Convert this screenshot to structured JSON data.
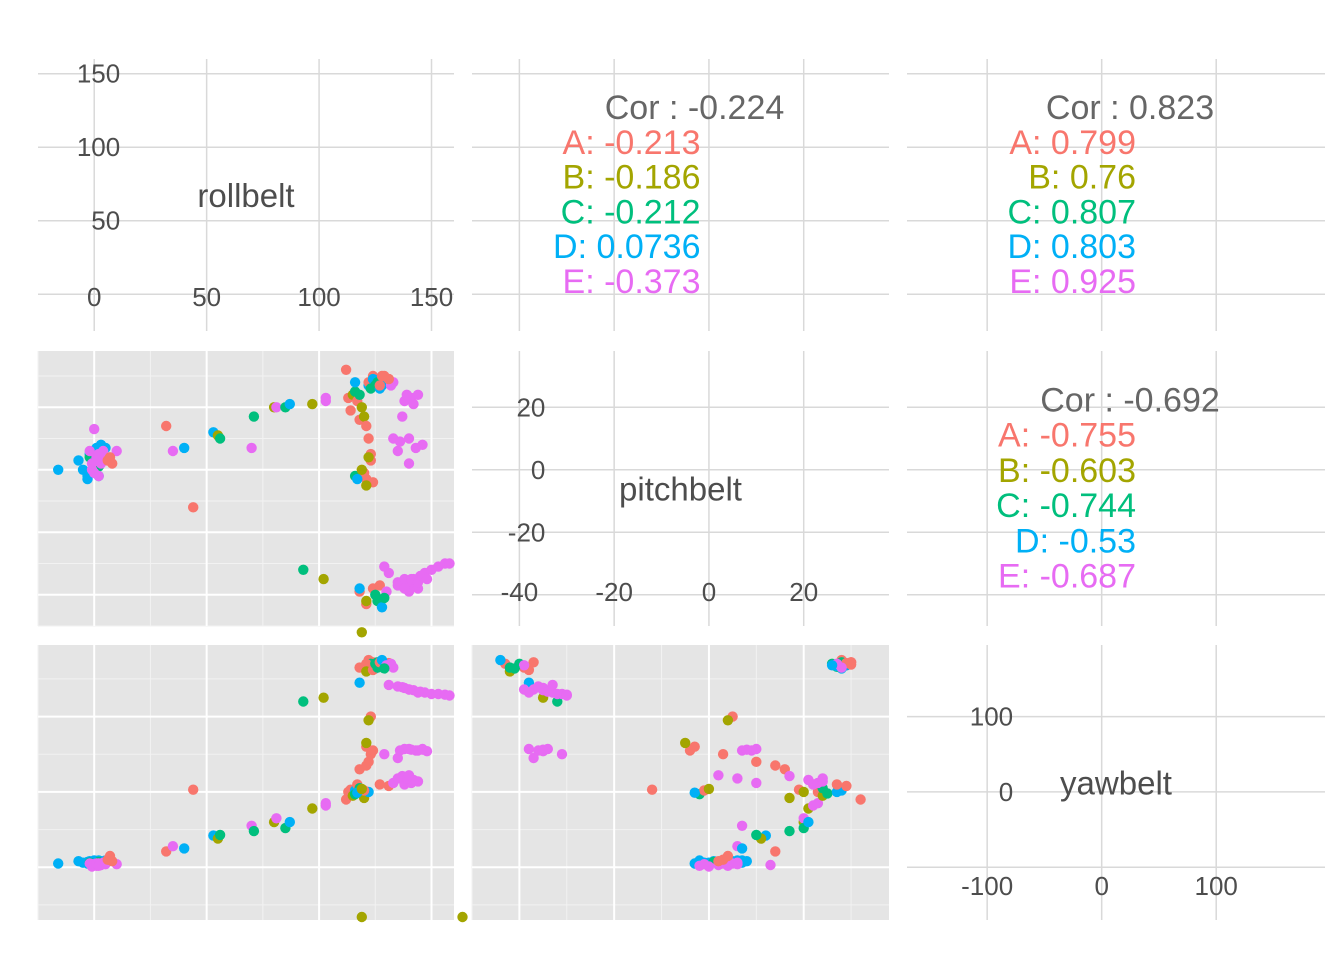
{
  "colors": {
    "A": "#F8766D",
    "B": "#A3A500",
    "C": "#00BF7D",
    "D": "#00B0F6",
    "E": "#E76BF3",
    "label": "#4d4d4d",
    "cor_title": "#666666",
    "panel_bg": "#e5e5e5",
    "grid_light": "#d9d9d9"
  },
  "chart_data": {
    "type": "scatter",
    "title": "",
    "variables": [
      "rollbelt",
      "pitchbelt",
      "yawbelt"
    ],
    "ranges": {
      "rollbelt": [
        -25,
        160
      ],
      "pitchbelt": [
        -50,
        38
      ],
      "yawbelt": [
        -170,
        195
      ]
    },
    "ticks": {
      "rollbelt": [
        0,
        50,
        100,
        150
      ],
      "pitchbelt": [
        -40,
        -20,
        0,
        20
      ],
      "yawbelt": [
        -100,
        0,
        100
      ]
    },
    "classes": [
      "A",
      "B",
      "C",
      "D",
      "E"
    ],
    "correlations": [
      {
        "pair": [
          "rollbelt",
          "pitchbelt"
        ],
        "overall": "Cor : -0.224",
        "groups": [
          {
            "cls": "A",
            "text": "A: -0.213"
          },
          {
            "cls": "B",
            "text": "B: -0.186"
          },
          {
            "cls": "C",
            "text": "C: -0.212"
          },
          {
            "cls": "D",
            "text": "D: 0.0736"
          },
          {
            "cls": "E",
            "text": "E: -0.373"
          }
        ]
      },
      {
        "pair": [
          "rollbelt",
          "yawbelt"
        ],
        "overall": "Cor : 0.823",
        "groups": [
          {
            "cls": "A",
            "text": "A: 0.799"
          },
          {
            "cls": "B",
            "text": "B: 0.76"
          },
          {
            "cls": "C",
            "text": "C: 0.807"
          },
          {
            "cls": "D",
            "text": "D: 0.803"
          },
          {
            "cls": "E",
            "text": "E: 0.925"
          }
        ]
      },
      {
        "pair": [
          "pitchbelt",
          "yawbelt"
        ],
        "overall": "Cor : -0.692",
        "groups": [
          {
            "cls": "A",
            "text": "A: -0.755"
          },
          {
            "cls": "B",
            "text": "B: -0.603"
          },
          {
            "cls": "C",
            "text": "C: -0.744"
          },
          {
            "cls": "D",
            "text": "D: -0.53"
          },
          {
            "cls": "E",
            "text": "E: -0.687"
          }
        ]
      }
    ],
    "points": [
      {
        "cls": "D",
        "roll": -16,
        "pitch": 0,
        "yaw": -95
      },
      {
        "cls": "D",
        "roll": -7,
        "pitch": 3,
        "yaw": -92
      },
      {
        "cls": "D",
        "roll": -5,
        "pitch": 0,
        "yaw": -94
      },
      {
        "cls": "D",
        "roll": -3,
        "pitch": -2,
        "yaw": -93
      },
      {
        "cls": "D",
        "roll": -2,
        "pitch": 5,
        "yaw": -92
      },
      {
        "cls": "D",
        "roll": 0,
        "pitch": 6,
        "yaw": -91
      },
      {
        "cls": "D",
        "roll": 1,
        "pitch": 7,
        "yaw": -94
      },
      {
        "cls": "D",
        "roll": 3,
        "pitch": 8,
        "yaw": -92
      },
      {
        "cls": "D",
        "roll": 2,
        "pitch": -2,
        "yaw": -91
      },
      {
        "cls": "D",
        "roll": -3,
        "pitch": -3,
        "yaw": -95
      },
      {
        "cls": "D",
        "roll": 0,
        "pitch": 1,
        "yaw": -92
      },
      {
        "cls": "D",
        "roll": 4,
        "pitch": 3,
        "yaw": -93
      },
      {
        "cls": "D",
        "roll": -1,
        "pitch": -1,
        "yaw": -94
      },
      {
        "cls": "D",
        "roll": 5,
        "pitch": 7,
        "yaw": -91
      },
      {
        "cls": "C",
        "roll": -2,
        "pitch": 4,
        "yaw": -94
      },
      {
        "cls": "C",
        "roll": 2,
        "pitch": 1,
        "yaw": -93
      },
      {
        "cls": "E",
        "roll": 0,
        "pitch": 13,
        "yaw": -97
      },
      {
        "cls": "E",
        "roll": -2,
        "pitch": 6,
        "yaw": -95
      },
      {
        "cls": "E",
        "roll": -1,
        "pitch": 2,
        "yaw": -96
      },
      {
        "cls": "E",
        "roll": 1,
        "pitch": 4,
        "yaw": -98
      },
      {
        "cls": "E",
        "roll": 2,
        "pitch": 5,
        "yaw": -95
      },
      {
        "cls": "E",
        "roll": 3,
        "pitch": 2,
        "yaw": -97
      },
      {
        "cls": "E",
        "roll": 4,
        "pitch": 6,
        "yaw": -94
      },
      {
        "cls": "E",
        "roll": -1,
        "pitch": 0,
        "yaw": -99
      },
      {
        "cls": "E",
        "roll": 0,
        "pitch": -1,
        "yaw": -96
      },
      {
        "cls": "E",
        "roll": 1,
        "pitch": 3,
        "yaw": -95
      },
      {
        "cls": "E",
        "roll": 2,
        "pitch": -2,
        "yaw": -98
      },
      {
        "cls": "E",
        "roll": 5,
        "pitch": 4,
        "yaw": -96
      },
      {
        "cls": "E",
        "roll": 10,
        "pitch": 6,
        "yaw": -96
      },
      {
        "cls": "A",
        "roll": 6,
        "pitch": 3,
        "yaw": -90
      },
      {
        "cls": "A",
        "roll": 7,
        "pitch": 4,
        "yaw": -85
      },
      {
        "cls": "A",
        "roll": 8,
        "pitch": 2,
        "yaw": -92
      },
      {
        "cls": "A",
        "roll": 32,
        "pitch": 14,
        "yaw": -79
      },
      {
        "cls": "E",
        "roll": 35,
        "pitch": 6,
        "yaw": -72
      },
      {
        "cls": "D",
        "roll": 40,
        "pitch": 7,
        "yaw": -75
      },
      {
        "cls": "A",
        "roll": 44,
        "pitch": -12,
        "yaw": 3
      },
      {
        "cls": "D",
        "roll": 53,
        "pitch": 12,
        "yaw": -58
      },
      {
        "cls": "B",
        "roll": 55,
        "pitch": 11,
        "yaw": -62
      },
      {
        "cls": "C",
        "roll": 56,
        "pitch": 10,
        "yaw": -57
      },
      {
        "cls": "E",
        "roll": 70,
        "pitch": 7,
        "yaw": -45
      },
      {
        "cls": "C",
        "roll": 71,
        "pitch": 17,
        "yaw": -52
      },
      {
        "cls": "B",
        "roll": 80,
        "pitch": 20,
        "yaw": -40
      },
      {
        "cls": "E",
        "roll": 81,
        "pitch": 20,
        "yaw": -35
      },
      {
        "cls": "C",
        "roll": 85,
        "pitch": 20,
        "yaw": -48
      },
      {
        "cls": "D",
        "roll": 87,
        "pitch": 21,
        "yaw": -40
      },
      {
        "cls": "B",
        "roll": 97,
        "pitch": 21,
        "yaw": -22
      },
      {
        "cls": "E",
        "roll": 103,
        "pitch": 22,
        "yaw": -18
      },
      {
        "cls": "E",
        "roll": 103,
        "pitch": 23,
        "yaw": -15
      },
      {
        "cls": "C",
        "roll": 93,
        "pitch": -32,
        "yaw": 120
      },
      {
        "cls": "B",
        "roll": 102,
        "pitch": -35,
        "yaw": 125
      },
      {
        "cls": "A",
        "roll": 112,
        "pitch": 32,
        "yaw": -10
      },
      {
        "cls": "A",
        "roll": 113,
        "pitch": 23,
        "yaw": 0
      },
      {
        "cls": "A",
        "roll": 114,
        "pitch": 19,
        "yaw": 3
      },
      {
        "cls": "B",
        "roll": 115,
        "pitch": 24,
        "yaw": -5
      },
      {
        "cls": "C",
        "roll": 116,
        "pitch": 25,
        "yaw": -2
      },
      {
        "cls": "D",
        "roll": 116,
        "pitch": 28,
        "yaw": 2
      },
      {
        "cls": "A",
        "roll": 117,
        "pitch": 22,
        "yaw": 10
      },
      {
        "cls": "A",
        "roll": 118,
        "pitch": 16,
        "yaw": 30
      },
      {
        "cls": "C",
        "roll": 118,
        "pitch": 24,
        "yaw": 5
      },
      {
        "cls": "B",
        "roll": 119,
        "pitch": 20,
        "yaw": 0
      },
      {
        "cls": "B",
        "roll": 120,
        "pitch": 17,
        "yaw": -8
      },
      {
        "cls": "D",
        "roll": 122,
        "pitch": 27,
        "yaw": 0
      },
      {
        "cls": "A",
        "roll": 121,
        "pitch": 14,
        "yaw": 35
      },
      {
        "cls": "A",
        "roll": 122,
        "pitch": 10,
        "yaw": 40
      },
      {
        "cls": "A",
        "roll": 123,
        "pitch": 3,
        "yaw": 50
      },
      {
        "cls": "A",
        "roll": 121,
        "pitch": -3,
        "yaw": 60
      },
      {
        "cls": "A",
        "roll": 124,
        "pitch": -4,
        "yaw": 55
      },
      {
        "cls": "B",
        "roll": 121,
        "pitch": -5,
        "yaw": 65
      },
      {
        "cls": "A",
        "roll": 123,
        "pitch": 5,
        "yaw": 100
      },
      {
        "cls": "B",
        "roll": 122,
        "pitch": 4,
        "yaw": 95
      },
      {
        "cls": "A",
        "roll": 122,
        "pitch": 28,
        "yaw": 175
      },
      {
        "cls": "A",
        "roll": 124,
        "pitch": 30,
        "yaw": 172
      },
      {
        "cls": "A",
        "roll": 126,
        "pitch": 29,
        "yaw": 168
      },
      {
        "cls": "C",
        "roll": 123,
        "pitch": 26,
        "yaw": 170
      },
      {
        "cls": "D",
        "roll": 124,
        "pitch": 29,
        "yaw": 168
      },
      {
        "cls": "D",
        "roll": 125,
        "pitch": 28,
        "yaw": 164
      },
      {
        "cls": "D",
        "roll": 127,
        "pitch": 29,
        "yaw": 170
      },
      {
        "cls": "C",
        "roll": 125,
        "pitch": 27,
        "yaw": 166
      },
      {
        "cls": "C",
        "roll": 126,
        "pitch": 28,
        "yaw": 172
      },
      {
        "cls": "D",
        "roll": 128,
        "pitch": 27,
        "yaw": 167
      },
      {
        "cls": "A",
        "roll": 129,
        "pitch": 30,
        "yaw": 169
      },
      {
        "cls": "A",
        "roll": 131,
        "pitch": 29,
        "yaw": 171
      },
      {
        "cls": "E",
        "roll": 133,
        "pitch": 28,
        "yaw": 165
      },
      {
        "cls": "E",
        "roll": 132,
        "pitch": 27,
        "yaw": 170
      },
      {
        "cls": "D",
        "roll": 127,
        "pitch": 26,
        "yaw": 168
      },
      {
        "cls": "A",
        "roll": 128,
        "pitch": 30,
        "yaw": 172
      },
      {
        "cls": "A",
        "roll": 127,
        "pitch": 27,
        "yaw": 10
      },
      {
        "cls": "A",
        "roll": 131,
        "pitch": 29,
        "yaw": 8
      },
      {
        "cls": "E",
        "roll": 133,
        "pitch": 10,
        "yaw": 12
      },
      {
        "cls": "A",
        "roll": 118,
        "pitch": -39,
        "yaw": 165
      },
      {
        "cls": "A",
        "roll": 121,
        "pitch": -43,
        "yaw": 170
      },
      {
        "cls": "D",
        "roll": 118,
        "pitch": -38,
        "yaw": 145
      },
      {
        "cls": "B",
        "roll": 121,
        "pitch": -42,
        "yaw": 160
      },
      {
        "cls": "B",
        "roll": 119,
        "pitch": -52,
        "yaw": -166
      },
      {
        "cls": "A",
        "roll": 124,
        "pitch": -38,
        "yaw": 162
      },
      {
        "cls": "C",
        "roll": 125,
        "pitch": -40,
        "yaw": 170
      },
      {
        "cls": "C",
        "roll": 126,
        "pitch": -42,
        "yaw": 165
      },
      {
        "cls": "A",
        "roll": 127,
        "pitch": -37,
        "yaw": 172
      },
      {
        "cls": "D",
        "roll": 128,
        "pitch": -44,
        "yaw": 175
      },
      {
        "cls": "E",
        "roll": 130,
        "pitch": -39,
        "yaw": 168
      },
      {
        "cls": "C",
        "roll": 129,
        "pitch": -41,
        "yaw": 164
      },
      {
        "cls": "E",
        "roll": 135,
        "pitch": -36,
        "yaw": 140
      },
      {
        "cls": "E",
        "roll": 138,
        "pitch": -35,
        "yaw": 138
      },
      {
        "cls": "E",
        "roll": 140,
        "pitch": -37,
        "yaw": 136
      },
      {
        "cls": "E",
        "roll": 142,
        "pitch": -35,
        "yaw": 135
      },
      {
        "cls": "E",
        "roll": 145,
        "pitch": -34,
        "yaw": 133
      },
      {
        "cls": "E",
        "roll": 147,
        "pitch": -33,
        "yaw": 132
      },
      {
        "cls": "E",
        "roll": 150,
        "pitch": -32,
        "yaw": 130
      },
      {
        "cls": "E",
        "roll": 153,
        "pitch": -31,
        "yaw": 130
      },
      {
        "cls": "E",
        "roll": 156,
        "pitch": -30,
        "yaw": 129
      },
      {
        "cls": "E",
        "roll": 158,
        "pitch": -30,
        "yaw": 128
      },
      {
        "cls": "E",
        "roll": 144,
        "pitch": -38,
        "yaw": 132
      },
      {
        "cls": "E",
        "roll": 140,
        "pitch": -39,
        "yaw": 136
      },
      {
        "cls": "E",
        "roll": 137,
        "pitch": -36,
        "yaw": 139
      },
      {
        "cls": "E",
        "roll": 131,
        "pitch": -33,
        "yaw": 142
      },
      {
        "cls": "E",
        "roll": 129,
        "pitch": -31,
        "yaw": 50
      },
      {
        "cls": "E",
        "roll": 135,
        "pitch": -37,
        "yaw": 45
      },
      {
        "cls": "E",
        "roll": 138,
        "pitch": -38,
        "yaw": 57
      },
      {
        "cls": "E",
        "roll": 141,
        "pitch": -35,
        "yaw": 56
      },
      {
        "cls": "E",
        "roll": 144,
        "pitch": -36,
        "yaw": 55
      },
      {
        "cls": "E",
        "roll": 146,
        "pitch": -34,
        "yaw": 57
      },
      {
        "cls": "E",
        "roll": 148,
        "pitch": -35,
        "yaw": 54
      },
      {
        "cls": "E",
        "roll": 136,
        "pitch": 9,
        "yaw": 55
      },
      {
        "cls": "E",
        "roll": 140,
        "pitch": 10,
        "yaw": 57
      },
      {
        "cls": "E",
        "roll": 143,
        "pitch": 7,
        "yaw": 55
      },
      {
        "cls": "E",
        "roll": 146,
        "pitch": 8,
        "yaw": 56
      },
      {
        "cls": "E",
        "roll": 138,
        "pitch": 22,
        "yaw": 10
      },
      {
        "cls": "E",
        "roll": 141,
        "pitch": 23,
        "yaw": 12
      },
      {
        "cls": "E",
        "roll": 144,
        "pitch": 24,
        "yaw": 14
      },
      {
        "cls": "E",
        "roll": 142,
        "pitch": 21,
        "yaw": 16
      },
      {
        "cls": "E",
        "roll": 139,
        "pitch": 24,
        "yaw": 18
      },
      {
        "cls": "E",
        "roll": 137,
        "pitch": 17,
        "yaw": 21
      },
      {
        "cls": "E",
        "roll": 140,
        "pitch": 2,
        "yaw": 22
      },
      {
        "cls": "E",
        "roll": 135,
        "pitch": 6,
        "yaw": 18
      },
      {
        "cls": "C",
        "roll": 116,
        "pitch": -2,
        "yaw": -3
      },
      {
        "cls": "A",
        "roll": 120,
        "pitch": -1,
        "yaw": 2
      },
      {
        "cls": "D",
        "roll": 117,
        "pitch": -3,
        "yaw": -1
      },
      {
        "cls": "B",
        "roll": 119,
        "pitch": 0,
        "yaw": 4
      }
    ]
  }
}
